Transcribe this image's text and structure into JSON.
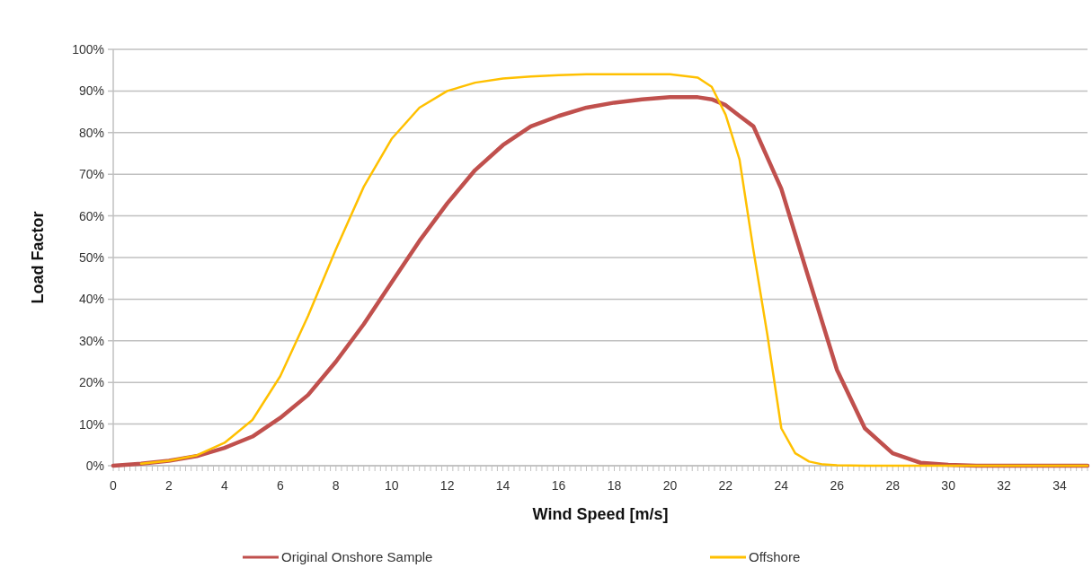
{
  "chart_data": {
    "type": "line",
    "xlabel": "Wind Speed [m/s]",
    "ylabel": "Load Factor",
    "xlim": [
      0,
      35
    ],
    "xticks": [
      0,
      2,
      4,
      6,
      8,
      10,
      12,
      14,
      16,
      18,
      20,
      22,
      24,
      26,
      28,
      30,
      32,
      34
    ],
    "ylim": [
      0,
      100
    ],
    "yticks": [
      {
        "value": 0,
        "label": "0%"
      },
      {
        "value": 10,
        "label": "10%"
      },
      {
        "value": 20,
        "label": "20%"
      },
      {
        "value": 30,
        "label": "30%"
      },
      {
        "value": 40,
        "label": "40%"
      },
      {
        "value": 50,
        "label": "50%"
      },
      {
        "value": 60,
        "label": "60%"
      },
      {
        "value": 70,
        "label": "70%"
      },
      {
        "value": 80,
        "label": "80%"
      },
      {
        "value": 90,
        "label": "90%"
      },
      {
        "value": 100,
        "label": "100%"
      }
    ],
    "grid": "y",
    "legend": "bottom",
    "marker": "none",
    "line_style": "solid",
    "series": [
      {
        "name": "Original Onshore Sample",
        "color": "#c0504d",
        "x": [
          0,
          1,
          2,
          3,
          4,
          5,
          6,
          7,
          8,
          9,
          10,
          11,
          12,
          13,
          14,
          15,
          16,
          17,
          18,
          19,
          20,
          21,
          21.5,
          22,
          22.5,
          23,
          24,
          25,
          26,
          27,
          28,
          29,
          30,
          31,
          35
        ],
        "values": [
          0,
          0.5,
          1.2,
          2.3,
          4.3,
          7,
          11.5,
          17,
          25,
          34,
          44,
          54,
          63,
          71,
          77,
          81.5,
          84,
          86,
          87.2,
          88,
          88.5,
          88.5,
          88,
          86.6,
          84,
          81.5,
          66.5,
          44.7,
          23,
          9,
          3,
          0.7,
          0.2,
          0,
          0
        ]
      },
      {
        "name": "Offshore",
        "color": "#ffc000",
        "x": [
          1,
          2,
          3,
          4,
          5,
          6,
          7,
          8,
          9,
          10,
          11,
          12,
          13,
          14,
          15,
          16,
          17,
          18,
          19,
          20,
          21,
          21.5,
          22,
          22.5,
          23,
          23.5,
          24,
          24.5,
          25,
          25.5,
          26,
          27,
          35
        ],
        "values": [
          0.5,
          1.2,
          2.5,
          5.5,
          11,
          21.5,
          36,
          52,
          67,
          78.5,
          86,
          90,
          92,
          93,
          93.5,
          93.8,
          94,
          94,
          94,
          94,
          93.2,
          91,
          84.3,
          73.5,
          51.7,
          31.4,
          9,
          3,
          1,
          0.3,
          0.1,
          0,
          0
        ]
      }
    ]
  }
}
